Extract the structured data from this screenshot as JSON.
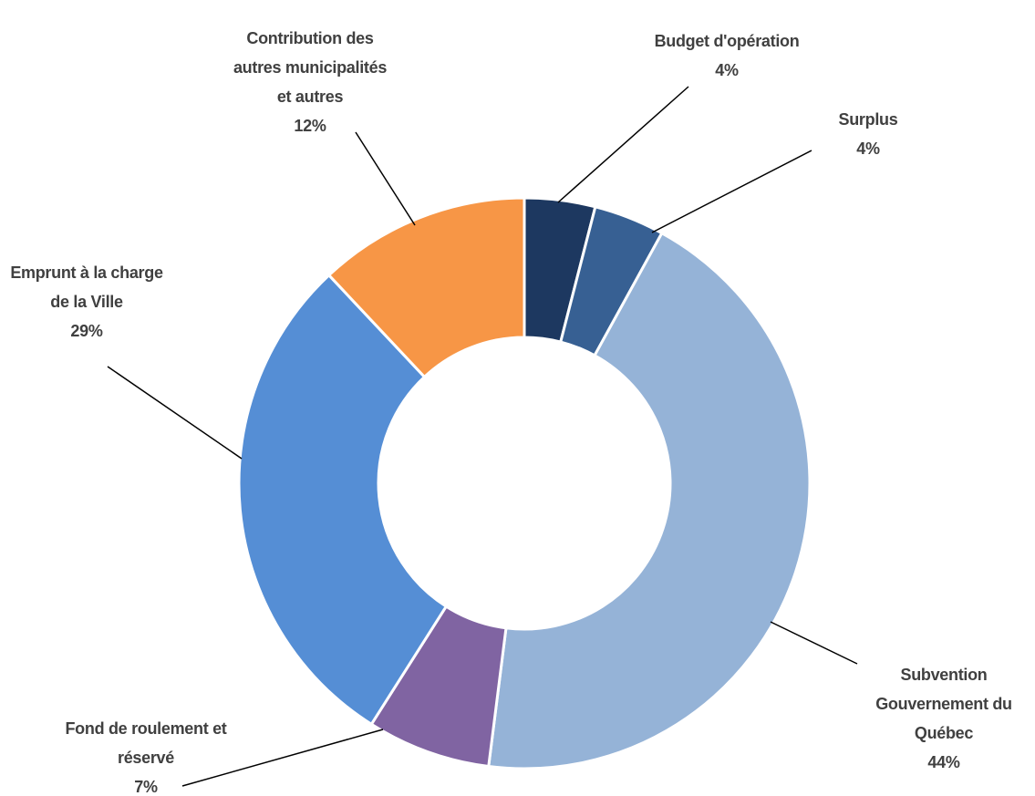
{
  "chart_data": {
    "type": "donut",
    "categories": [
      "Budget d'opération",
      "Surplus",
      "Subvention Gouvernement du Québec",
      "Fond de roulement et réservé",
      "Emprunt à la charge de la Ville",
      "Contribution des autres municipalités et autres"
    ],
    "values": [
      4,
      4,
      44,
      7,
      29,
      12
    ],
    "value_labels": [
      "4%",
      "4%",
      "44%",
      "7%",
      "29%",
      "12%"
    ],
    "colors": [
      "#1d3860",
      "#376093",
      "#95b3d7",
      "#8064a2",
      "#558ed5",
      "#f79646"
    ]
  }
}
